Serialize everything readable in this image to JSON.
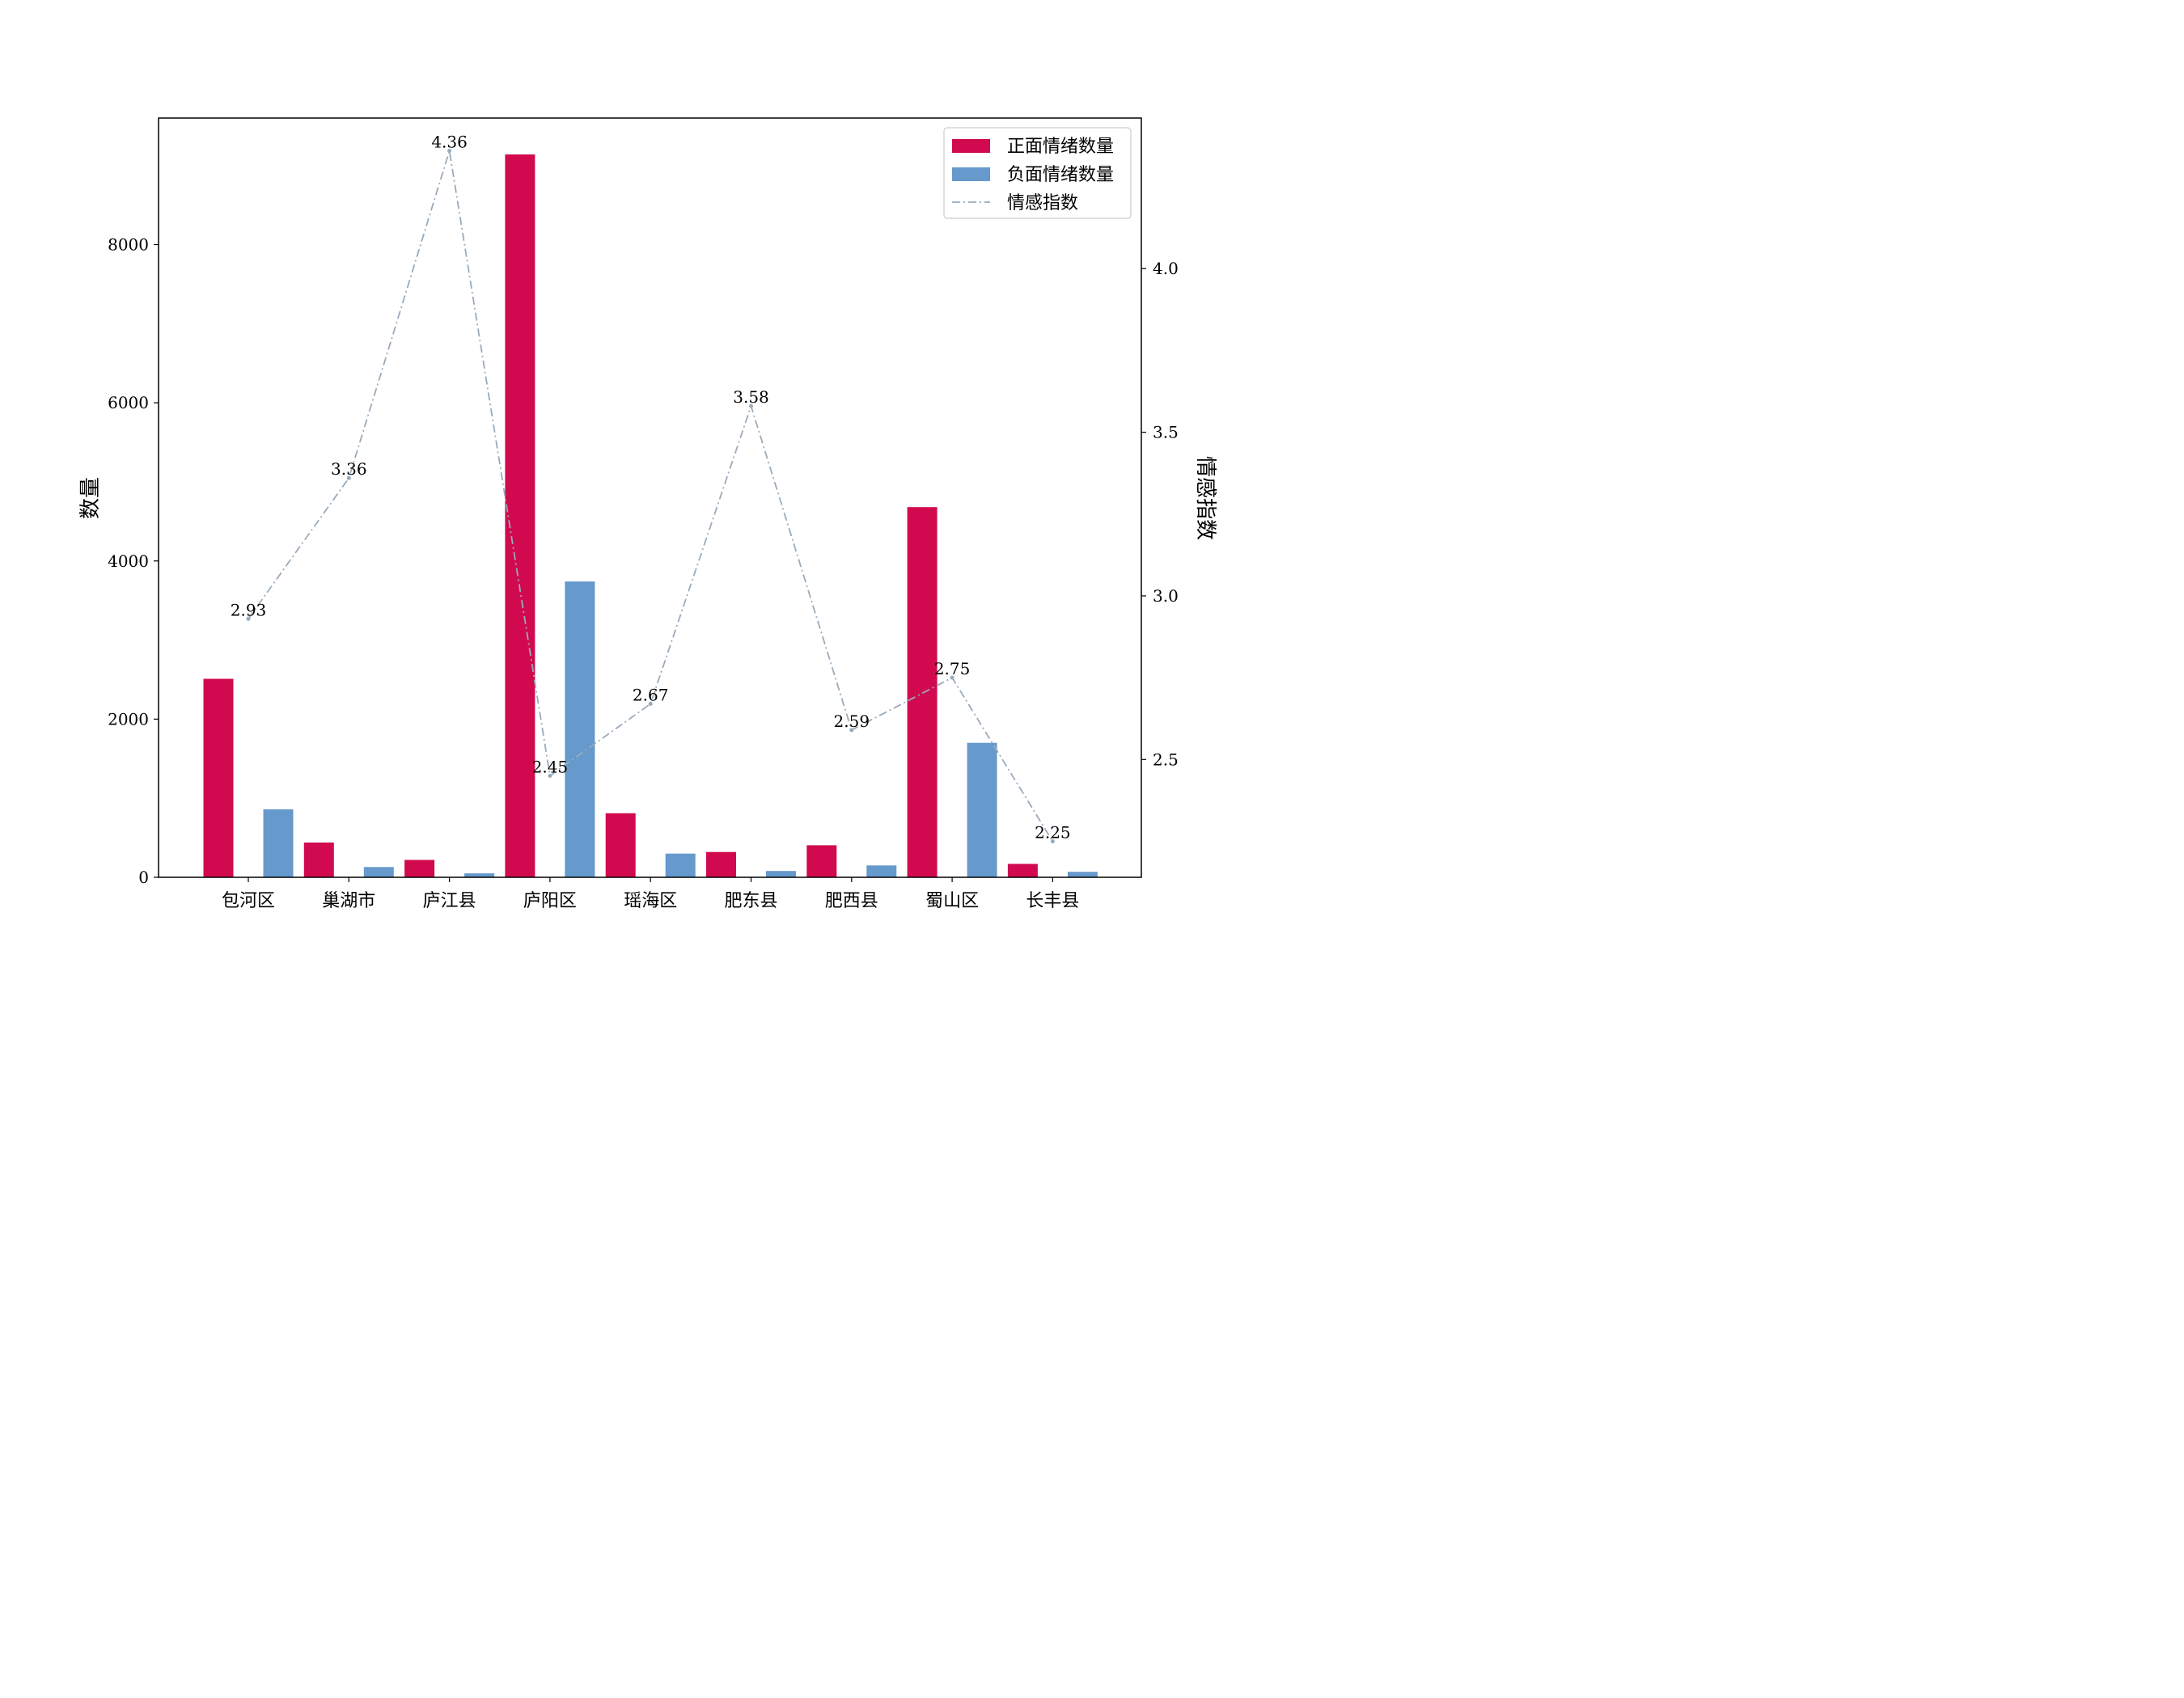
{
  "chart_data": {
    "type": "bar",
    "categories": [
      "包河区",
      "巢湖市",
      "庐江县",
      "庐阳区",
      "瑶海区",
      "肥东县",
      "肥西县",
      "蜀山区",
      "长丰县"
    ],
    "series": [
      {
        "name": "正面情绪数量",
        "kind": "bar",
        "axis": "left",
        "color": "#d10a4f",
        "values": [
          2510,
          440,
          220,
          9140,
          810,
          320,
          405,
          4680,
          170
        ]
      },
      {
        "name": "负面情绪数量",
        "kind": "bar",
        "axis": "left",
        "color": "#6699cc",
        "values": [
          860,
          130,
          50,
          3740,
          300,
          80,
          150,
          1700,
          70
        ]
      },
      {
        "name": "情感指数",
        "kind": "line",
        "axis": "right",
        "color": "#9aabbb",
        "line_style": "dash-dot",
        "values": [
          2.93,
          3.36,
          4.36,
          2.45,
          2.67,
          3.58,
          2.59,
          2.75,
          2.25
        ],
        "point_labels": [
          "2.93",
          "3.36",
          "4.36",
          "2.45",
          "2.67",
          "3.58",
          "2.59",
          "2.75",
          "2.25"
        ]
      }
    ],
    "ylabel": "数量",
    "y2label": "情感指数",
    "ylim": [
      0,
      9600
    ],
    "y2lim": [
      2.14,
      4.46
    ],
    "yticks": [
      0,
      2000,
      4000,
      6000,
      8000
    ],
    "y2ticks": [
      2.5,
      3.0,
      3.5,
      4.0
    ],
    "ytick_labels": [
      "0",
      "2000",
      "4000",
      "6000",
      "8000"
    ],
    "y2tick_labels": [
      "2.5",
      "3.0",
      "3.5",
      "4.0"
    ],
    "grid": false,
    "legend_position": "top-right"
  }
}
